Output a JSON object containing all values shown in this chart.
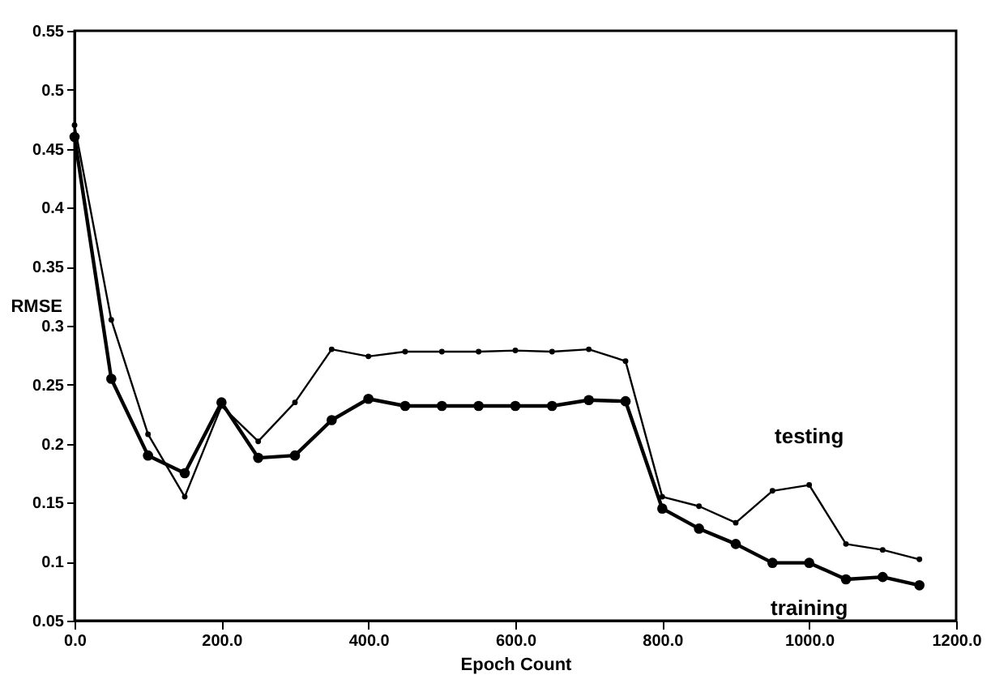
{
  "chart_data": {
    "type": "line",
    "xlabel": "Epoch Count",
    "ylabel": "RMSE",
    "x": [
      0,
      50,
      100,
      150,
      200,
      250,
      300,
      350,
      400,
      450,
      500,
      550,
      600,
      650,
      700,
      750,
      800,
      850,
      900,
      950,
      1000,
      1050,
      1100,
      1150
    ],
    "series": [
      {
        "name": "testing",
        "color": "#000000",
        "values": [
          0.47,
          0.305,
          0.208,
          0.155,
          0.232,
          0.202,
          0.235,
          0.28,
          0.274,
          0.278,
          0.278,
          0.278,
          0.279,
          0.278,
          0.28,
          0.27,
          0.155,
          0.147,
          0.133,
          0.16,
          0.165,
          0.115,
          0.11,
          0.102
        ]
      },
      {
        "name": "training",
        "color": "#000000",
        "values": [
          0.46,
          0.255,
          0.19,
          0.175,
          0.235,
          0.188,
          0.19,
          0.22,
          0.238,
          0.232,
          0.232,
          0.232,
          0.232,
          0.232,
          0.237,
          0.236,
          0.145,
          0.128,
          0.115,
          0.099,
          0.099,
          0.085,
          0.087,
          0.08
        ]
      }
    ],
    "xlim": [
      0,
      1200
    ],
    "xticks": [
      {
        "value": 0,
        "label": "0.0"
      },
      {
        "value": 200,
        "label": "200.0"
      },
      {
        "value": 400,
        "label": "400.0"
      },
      {
        "value": 600,
        "label": "600.0"
      },
      {
        "value": 800,
        "label": "800.0"
      },
      {
        "value": 1000,
        "label": "1000.0"
      },
      {
        "value": 1200,
        "label": "1200.0"
      }
    ],
    "ylim": [
      0.05,
      0.55
    ],
    "yticks": [
      0.05,
      0.1,
      0.15,
      0.2,
      0.25,
      0.3,
      0.35,
      0.4,
      0.45,
      0.5,
      0.55
    ],
    "grid": false,
    "marker": "circle",
    "line_style": "solid"
  }
}
